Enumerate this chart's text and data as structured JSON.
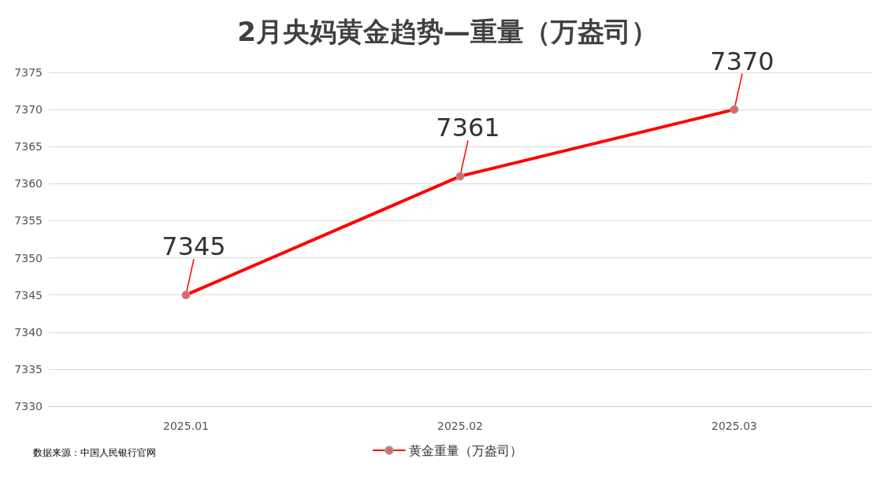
{
  "chart_data": {
    "type": "line",
    "title": "2月央妈黄金趋势—重量（万盎司）",
    "categories": [
      "2025.01",
      "2025.02",
      "2025.03"
    ],
    "series": [
      {
        "name": "黄金重量（万盎司）",
        "color": "#ff0000",
        "values": [
          7345,
          7361,
          7370
        ]
      }
    ],
    "ylim": [
      7330,
      7375
    ],
    "yticks": [
      7330,
      7335,
      7340,
      7345,
      7350,
      7355,
      7360,
      7365,
      7370,
      7375
    ],
    "grid": "y",
    "legend": "bottom",
    "marker": "circle",
    "data_labels": true,
    "annotations": [
      "数据来源：中国人民银行官网"
    ]
  }
}
